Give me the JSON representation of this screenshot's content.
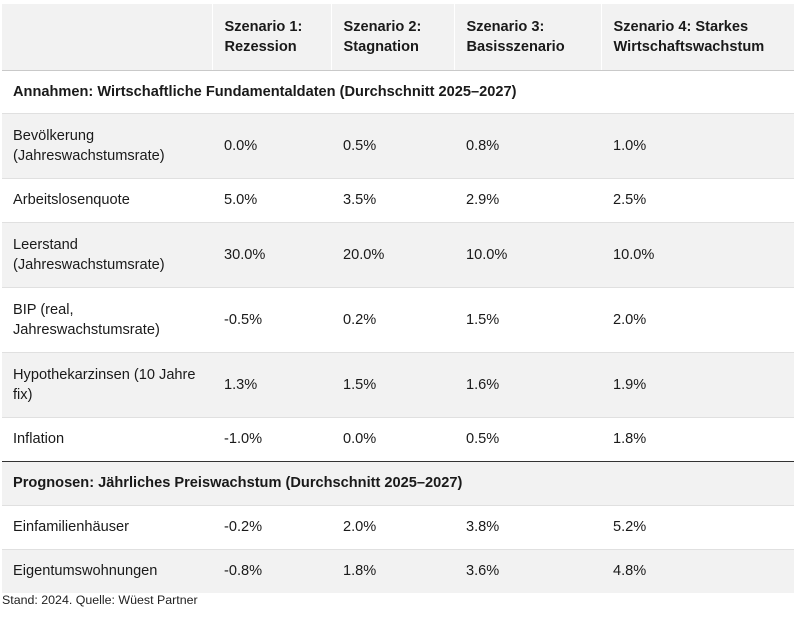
{
  "table": {
    "headers": [
      "",
      "Szenario 1: Rezession",
      "Szenario 2: Stagnation",
      "Szenario 3: Basisszenario",
      "Szenario 4: Starkes Wirtschaftswachstum"
    ],
    "sections": [
      {
        "title": "Annahmen: Wirtschaftliche Fundamentaldaten (Durchschnitt 2025–2027)",
        "rows": [
          {
            "label": "Bevölkerung (Jahreswachstumsrate)",
            "values": [
              "0.0%",
              "0.5%",
              "0.8%",
              "1.0%"
            ]
          },
          {
            "label": "Arbeitslosenquote",
            "values": [
              "5.0%",
              "3.5%",
              "2.9%",
              "2.5%"
            ]
          },
          {
            "label": "Leerstand (Jahreswachstumsrate)",
            "values": [
              "30.0%",
              "20.0%",
              "10.0%",
              "10.0%"
            ]
          },
          {
            "label": "BIP (real, Jahreswachstumsrate)",
            "values": [
              "-0.5%",
              "0.2%",
              "1.5%",
              "2.0%"
            ]
          },
          {
            "label": "Hypothekarzinsen (10 Jahre fix)",
            "values": [
              "1.3%",
              "1.5%",
              "1.6%",
              "1.9%"
            ]
          },
          {
            "label": "Inflation",
            "values": [
              "-1.0%",
              "0.0%",
              "0.5%",
              "1.8%"
            ]
          }
        ]
      },
      {
        "title": "Prognosen: Jährliches Preiswachstum (Durchschnitt 2025–2027)",
        "rows": [
          {
            "label": "Einfamilienhäuser",
            "values": [
              "-0.2%",
              "2.0%",
              "3.8%",
              "5.2%"
            ]
          },
          {
            "label": "Eigentumswohnungen",
            "values": [
              "-0.8%",
              "1.8%",
              "3.6%",
              "4.8%"
            ]
          }
        ]
      }
    ]
  },
  "footnote": "Stand: 2024. Quelle: Wüest Partner",
  "colors": {
    "shaded_row": "#f2f2f2",
    "section_divider": "#333333"
  }
}
